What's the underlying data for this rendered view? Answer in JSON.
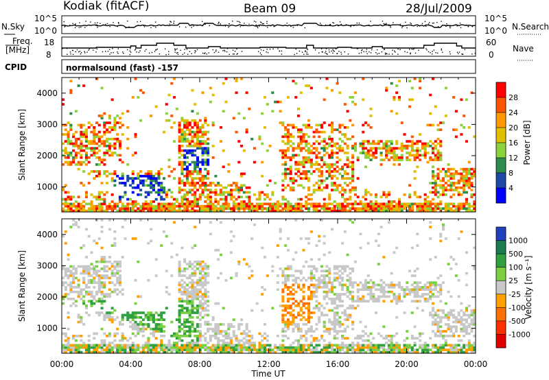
{
  "header": {
    "station": "Kodiak (fitACF)",
    "beam": "Beam 09",
    "date": "28/Jul/2009"
  },
  "top_panels": {
    "nsky_label": "N.Sky",
    "nsky_ticks": [
      "10^5",
      "10^0"
    ],
    "nsearch_label": "N.Search",
    "nsearch_ticks": [
      "10^5",
      "10^0"
    ],
    "freq_label_1": "Freq.",
    "freq_label_2": "[MHz]",
    "freq_ticks": [
      "18",
      "8"
    ],
    "nave_label": "Nave",
    "nave_ticks": [
      "60",
      "0"
    ],
    "cpid_label": "CPID",
    "cpid_text": "normalsound (fast) -157"
  },
  "chart_data": [
    {
      "type": "heatmap",
      "name": "power",
      "ylabel": "Slant Range [km]",
      "yticks": [
        "1000",
        "2000",
        "3000",
        "4000"
      ],
      "ylim": [
        200,
        4500
      ],
      "xlim": [
        0,
        24
      ],
      "xticks": [
        "00:00",
        "04:00",
        "08:00",
        "12:00",
        "16:00",
        "20:00",
        "00:00"
      ],
      "colorbar": {
        "label": "Power [dB]",
        "ticks": [
          "28",
          "24",
          "20",
          "16",
          "12",
          "8",
          "4"
        ],
        "colors": [
          "#ff0000",
          "#ff5500",
          "#ff9900",
          "#e0c000",
          "#8cd23c",
          "#2c8c4c",
          "#1c48a8",
          "#0000ff"
        ]
      }
    },
    {
      "type": "heatmap",
      "name": "velocity",
      "ylabel": "Slant Range [km]",
      "yticks": [
        "1000",
        "2000",
        "3000",
        "4000"
      ],
      "ylim": [
        200,
        4500
      ],
      "xlim": [
        0,
        24
      ],
      "xlabel": "Time UT",
      "xticks": [
        "00:00",
        "04:00",
        "08:00",
        "12:00",
        "16:00",
        "20:00",
        "00:00"
      ],
      "colorbar": {
        "label": "Velocity [m s⁻¹]",
        "ticks": [
          "1000",
          "500",
          "100",
          "25",
          "-25",
          "-100",
          "-500",
          "-1000"
        ],
        "colors": [
          "#2040c0",
          "#1a7a50",
          "#30a040",
          "#7ad040",
          "#c8c8c8",
          "#ffa000",
          "#ff7000",
          "#ff3000",
          "#e00000"
        ]
      }
    }
  ]
}
